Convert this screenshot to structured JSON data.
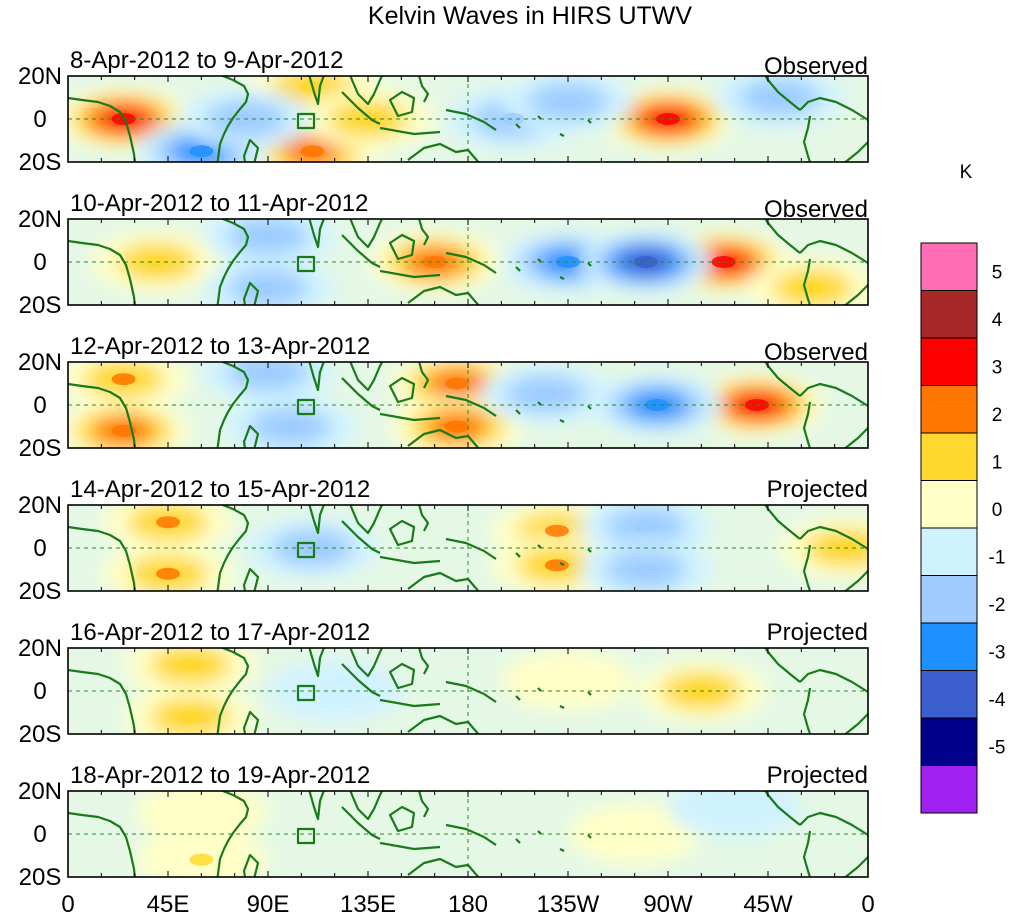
{
  "title": "Kelvin Waves in HIRS UTWV",
  "colorbar": {
    "unit": "K",
    "colors": [
      "#a020f0",
      "#00008b",
      "#3a5fcd",
      "#1e90ff",
      "#9fcdff",
      "#d0f2ff",
      "#ffffc8",
      "#ffd82f",
      "#ff7600",
      "#ff0000",
      "#a62828",
      "#ff6eb4"
    ],
    "tick_labels": [
      "5",
      "4",
      "3",
      "2",
      "1",
      "0",
      "-1",
      "-2",
      "-3",
      "-4",
      "-5"
    ]
  },
  "lat_labels": [
    "20N",
    "0",
    "20S"
  ],
  "lon_labels": [
    "0",
    "45E",
    "90E",
    "135E",
    "180",
    "135W",
    "90W",
    "45W",
    "0"
  ],
  "panels": [
    {
      "date_range": "8-Apr-2012 to 9-Apr-2012",
      "label": "Observed",
      "anomalies": [
        {
          "lon": 25,
          "lat": 0,
          "value": 3.2
        },
        {
          "lon": 110,
          "lat": 15,
          "value": 1.8
        },
        {
          "lon": 110,
          "lat": -15,
          "value": 2.2
        },
        {
          "lon": 135,
          "lat": 0,
          "value": 1.6
        },
        {
          "lon": 270,
          "lat": 0,
          "value": 3.4
        },
        {
          "lon": 60,
          "lat": -15,
          "value": -2.2
        },
        {
          "lon": 200,
          "lat": 0,
          "value": -2.0
        },
        {
          "lon": 225,
          "lat": 8,
          "value": -1.6
        },
        {
          "lon": 320,
          "lat": 10,
          "value": -1.5
        },
        {
          "lon": 80,
          "lat": 0,
          "value": -1.2
        }
      ]
    },
    {
      "date_range": "10-Apr-2012 to 11-Apr-2012",
      "label": "Observed",
      "anomalies": [
        {
          "lon": 165,
          "lat": 0,
          "value": 2.6
        },
        {
          "lon": 295,
          "lat": 0,
          "value": 3.6
        },
        {
          "lon": 40,
          "lat": 0,
          "value": 1.4
        },
        {
          "lon": 225,
          "lat": 0,
          "value": -2.2
        },
        {
          "lon": 260,
          "lat": 0,
          "value": -3.8
        },
        {
          "lon": 90,
          "lat": 12,
          "value": -1.8
        },
        {
          "lon": 90,
          "lat": -12,
          "value": -2.0
        },
        {
          "lon": 335,
          "lat": -12,
          "value": 1.5
        }
      ]
    },
    {
      "date_range": "12-Apr-2012 to 13-Apr-2012",
      "label": "Observed",
      "anomalies": [
        {
          "lon": 175,
          "lat": 10,
          "value": 2.2
        },
        {
          "lon": 175,
          "lat": -10,
          "value": 2.4
        },
        {
          "lon": 310,
          "lat": 0,
          "value": 3.2
        },
        {
          "lon": 25,
          "lat": 12,
          "value": 2.0
        },
        {
          "lon": 25,
          "lat": -12,
          "value": 2.2
        },
        {
          "lon": 265,
          "lat": 0,
          "value": -2.8
        },
        {
          "lon": 215,
          "lat": 5,
          "value": -1.8
        },
        {
          "lon": 100,
          "lat": -10,
          "value": -2.0
        },
        {
          "lon": 90,
          "lat": 15,
          "value": -1.6
        }
      ]
    },
    {
      "date_range": "14-Apr-2012 to 15-Apr-2012",
      "label": "Projected",
      "anomalies": [
        {
          "lon": 220,
          "lat": 8,
          "value": 2.0
        },
        {
          "lon": 220,
          "lat": -8,
          "value": 2.0
        },
        {
          "lon": 45,
          "lat": 12,
          "value": 2.0
        },
        {
          "lon": 45,
          "lat": -12,
          "value": 2.0
        },
        {
          "lon": 350,
          "lat": 0,
          "value": 1.8
        },
        {
          "lon": 260,
          "lat": 10,
          "value": -2.0
        },
        {
          "lon": 260,
          "lat": -10,
          "value": -1.8
        },
        {
          "lon": 110,
          "lat": 0,
          "value": -1.2
        }
      ]
    },
    {
      "date_range": "16-Apr-2012 to 17-Apr-2012",
      "label": "Projected",
      "anomalies": [
        {
          "lon": 55,
          "lat": 12,
          "value": 1.2
        },
        {
          "lon": 55,
          "lat": -12,
          "value": 1.2
        },
        {
          "lon": 225,
          "lat": 5,
          "value": 0.8
        },
        {
          "lon": 285,
          "lat": 0,
          "value": 1.1
        },
        {
          "lon": 120,
          "lat": 0,
          "value": -0.8
        }
      ]
    },
    {
      "date_range": "18-Apr-2012 to 19-Apr-2012",
      "label": "Projected",
      "anomalies": [
        {
          "lon": 60,
          "lat": -12,
          "value": 1.0
        },
        {
          "lon": 60,
          "lat": 10,
          "value": 0.8
        },
        {
          "lon": 255,
          "lat": 0,
          "value": 0.7
        },
        {
          "lon": 300,
          "lat": 12,
          "value": -0.8
        }
      ]
    }
  ]
}
